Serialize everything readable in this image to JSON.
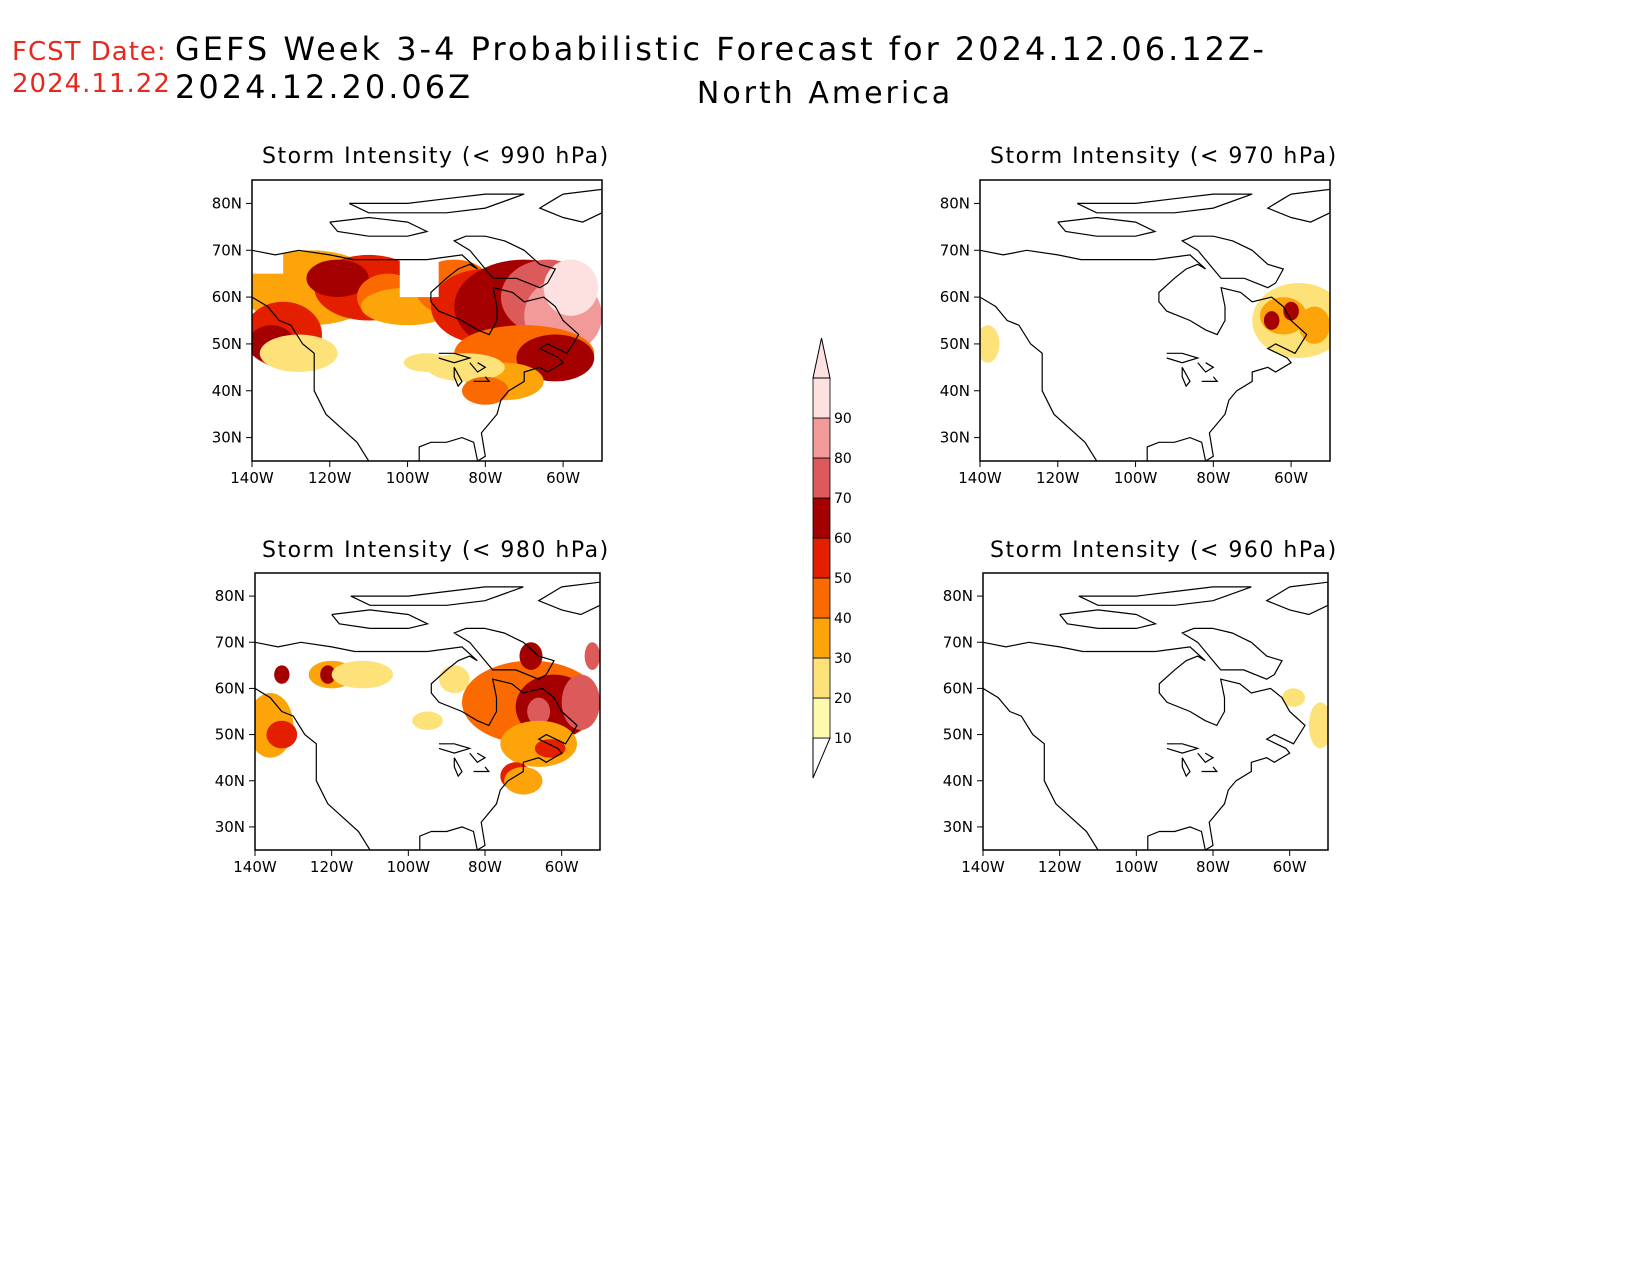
{
  "header": {
    "fcst_label": "FCST Date:",
    "fcst_date": "2024.11.22",
    "title": "GEFS Week 3-4 Probabilistic Forecast for 2024.12.06.12Z-2024.12.20.06Z",
    "subtitle": "North America"
  },
  "panels": [
    {
      "title": "Storm Intensity (< 990 hPa)",
      "lat_ticks": [
        "80N",
        "70N",
        "60N",
        "50N",
        "40N",
        "30N"
      ],
      "lon_ticks": [
        "140W",
        "120W",
        "100W",
        "80W",
        "60W"
      ]
    },
    {
      "title": "Storm Intensity (< 970 hPa)",
      "lat_ticks": [
        "80N",
        "70N",
        "60N",
        "50N",
        "40N",
        "30N"
      ],
      "lon_ticks": [
        "140W",
        "120W",
        "100W",
        "80W",
        "60W"
      ]
    },
    {
      "title": "Storm Intensity (< 980 hPa)",
      "lat_ticks": [
        "80N",
        "70N",
        "60N",
        "50N",
        "40N",
        "30N"
      ],
      "lon_ticks": [
        "140W",
        "120W",
        "100W",
        "80W",
        "60W"
      ]
    },
    {
      "title": "Storm Intensity (< 960 hPa)",
      "lat_ticks": [
        "80N",
        "70N",
        "60N",
        "50N",
        "40N",
        "30N"
      ],
      "lon_ticks": [
        "140W",
        "120W",
        "100W",
        "80W",
        "60W"
      ]
    }
  ],
  "colorbar": {
    "labels": [
      "10",
      "20",
      "30",
      "40",
      "50",
      "60",
      "70",
      "80",
      "90"
    ],
    "colors": [
      "#fff9b0",
      "#fde27a",
      "#fca40a",
      "#fb6a00",
      "#e41f00",
      "#a50000",
      "#dc5a5a",
      "#f29a9a",
      "#fde0e0"
    ]
  }
}
